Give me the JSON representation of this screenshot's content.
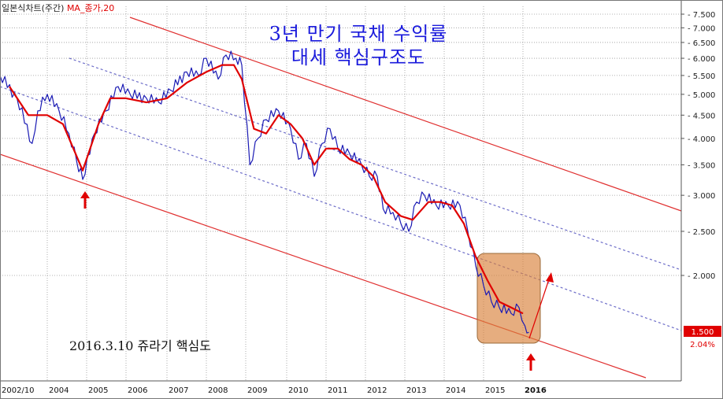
{
  "legend": {
    "chart_label": "일본식차트(주간)",
    "ma_label": "MA_종가,20"
  },
  "title_line1": "3년 만기 국채 수익률",
  "title_line2": "대세 핵심구조도",
  "note": "2016.3.10 쥬라기 핵심도",
  "last_price_label": "1.500",
  "last_change_label": "2.04%",
  "colors": {
    "price": "#1a1ab4",
    "ma": "#e00000",
    "channel": "#e03030",
    "dotted": "#6c6cc8",
    "highlight": "#d9813a",
    "arrow": "#e00000",
    "title": "#1a1adc",
    "badge": "#e00000"
  },
  "chart_data": {
    "type": "line",
    "scale": "log",
    "ylim": [
      1.3,
      7.8
    ],
    "y_ticks": [
      "7.500",
      "7.000",
      "6.500",
      "6.000",
      "5.500",
      "5.000",
      "4.500",
      "4.000",
      "3.500",
      "3.000",
      "2.500",
      "2.000"
    ],
    "x_ticks": [
      "2002/10",
      "2004",
      "2005",
      "2006",
      "2007",
      "2008",
      "2009",
      "2010",
      "2011",
      "2012",
      "2013",
      "2014",
      "2015",
      "2016"
    ],
    "series": [
      {
        "name": "일본식차트(주간)",
        "x": [
          2002.75,
          2003.2,
          2003.6,
          2003.75,
          2004.0,
          2004.3,
          2004.55,
          2004.75,
          2004.9,
          2005.2,
          2005.5,
          2005.8,
          2006.1,
          2006.5,
          2006.8,
          2007.1,
          2007.5,
          2007.8,
          2008.0,
          2008.3,
          2008.5,
          2008.75,
          2008.9,
          2009.1,
          2009.3,
          2009.5,
          2009.8,
          2010.1,
          2010.3,
          2010.5,
          2010.7,
          2010.9,
          2011.1,
          2011.3,
          2011.6,
          2011.9,
          2012.1,
          2012.3,
          2012.45,
          2012.7,
          2012.9,
          2013.1,
          2013.3,
          2013.5,
          2013.8,
          2014.1,
          2014.4,
          2014.6,
          2014.8,
          2015.0,
          2015.2,
          2015.4,
          2015.7,
          2015.9,
          2016.05,
          2016.15
        ],
        "y": [
          5.5,
          4.9,
          3.9,
          4.6,
          5.0,
          4.6,
          4.1,
          3.55,
          3.25,
          4.1,
          4.6,
          5.2,
          5.0,
          4.9,
          4.8,
          5.1,
          5.6,
          5.5,
          6.0,
          5.4,
          6.1,
          6.0,
          5.8,
          3.5,
          4.0,
          4.4,
          4.6,
          4.2,
          3.6,
          3.9,
          3.3,
          3.9,
          4.2,
          3.8,
          3.7,
          3.5,
          3.3,
          3.3,
          2.8,
          2.75,
          2.6,
          2.5,
          2.9,
          3.0,
          2.85,
          2.85,
          2.85,
          2.5,
          2.1,
          1.9,
          1.75,
          1.7,
          1.65,
          1.7,
          1.55,
          1.5
        ]
      },
      {
        "name": "MA_종가,20",
        "x": [
          2003.0,
          2003.5,
          2004.0,
          2004.4,
          2004.9,
          2005.3,
          2005.6,
          2006.0,
          2006.5,
          2007.0,
          2007.5,
          2008.0,
          2008.4,
          2008.7,
          2008.9,
          2009.2,
          2009.5,
          2009.8,
          2010.1,
          2010.4,
          2010.7,
          2011.0,
          2011.3,
          2011.6,
          2011.9,
          2012.2,
          2012.5,
          2012.9,
          2013.2,
          2013.6,
          2013.9,
          2014.2,
          2014.5,
          2014.8,
          2015.1,
          2015.4,
          2015.7,
          2016.0
        ],
        "y": [
          5.2,
          4.5,
          4.5,
          4.3,
          3.4,
          4.3,
          4.9,
          4.9,
          4.8,
          4.9,
          5.3,
          5.6,
          5.8,
          5.8,
          5.4,
          4.2,
          4.1,
          4.5,
          4.3,
          4.0,
          3.5,
          3.8,
          3.8,
          3.6,
          3.5,
          3.3,
          2.9,
          2.7,
          2.65,
          2.9,
          2.9,
          2.85,
          2.6,
          2.2,
          1.95,
          1.75,
          1.7,
          1.65
        ]
      }
    ]
  }
}
